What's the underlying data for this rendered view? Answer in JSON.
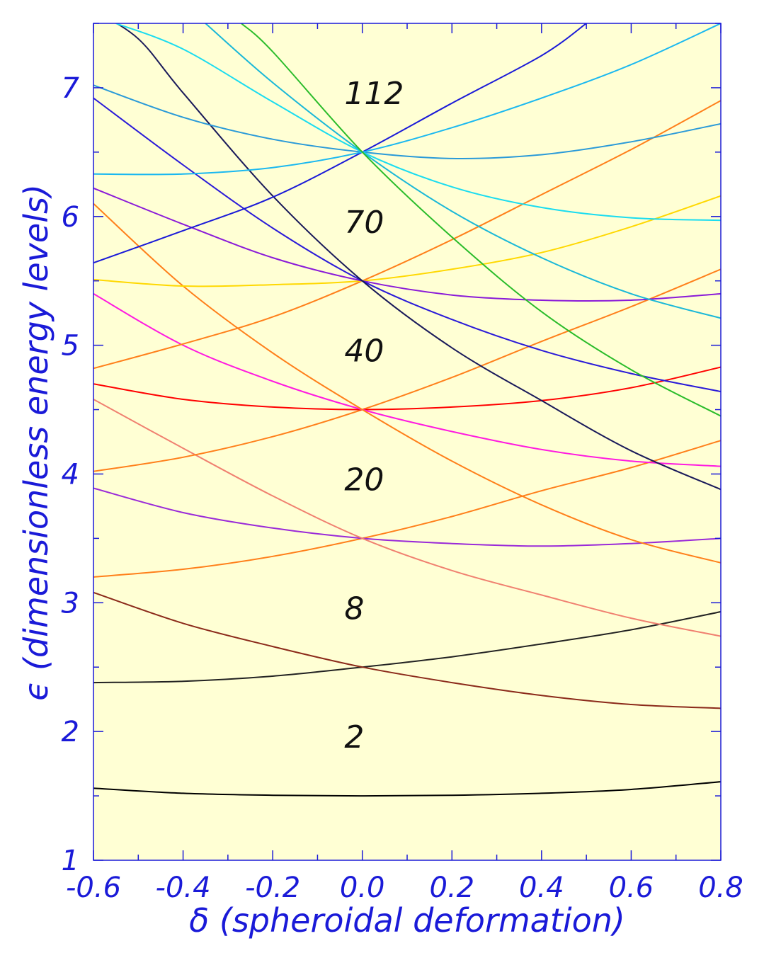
{
  "chart_data": {
    "type": "line",
    "xlabel": "δ (spheroidal deformation)",
    "ylabel": "ϵ (dimensionless energy levels)",
    "xlim": [
      -0.6,
      0.8
    ],
    "ylim": [
      1,
      7.5
    ],
    "x_ticks": [
      "-0.6",
      "-0.4",
      "-0.2",
      "0.0",
      "0.2",
      "0.4",
      "0.6",
      "0.8"
    ],
    "y_ticks": [
      "1",
      "2",
      "3",
      "4",
      "5",
      "6",
      "7"
    ],
    "grid": false,
    "background": "#ffffd4",
    "frame_color": "#1a1ad8",
    "shell_labels": [
      {
        "text": "2",
        "x": 0.0,
        "y": 1.95
      },
      {
        "text": "8",
        "x": 0.0,
        "y": 2.95
      },
      {
        "text": "20",
        "x": 0.0,
        "y": 3.95
      },
      {
        "text": "40",
        "x": 0.0,
        "y": 4.95
      },
      {
        "text": "70",
        "x": 0.0,
        "y": 5.95
      },
      {
        "text": "112",
        "x": 0.0,
        "y": 6.95
      }
    ],
    "series": [
      {
        "color": "#000000",
        "x": [
          -0.6,
          -0.4,
          -0.2,
          0.0,
          0.2,
          0.4,
          0.6,
          0.8
        ],
        "y": [
          1.56,
          1.52,
          1.505,
          1.5,
          1.505,
          1.52,
          1.55,
          1.61
        ]
      },
      {
        "color": "#222222",
        "x": [
          -0.6,
          -0.4,
          -0.2,
          0.0,
          0.2,
          0.4,
          0.6,
          0.8
        ],
        "y": [
          2.38,
          2.39,
          2.43,
          2.5,
          2.58,
          2.68,
          2.79,
          2.93
        ]
      },
      {
        "color": "#8b2a1a",
        "x": [
          -0.6,
          -0.4,
          -0.2,
          0.0,
          0.2,
          0.4,
          0.6,
          0.8
        ],
        "y": [
          3.08,
          2.84,
          2.66,
          2.5,
          2.38,
          2.28,
          2.21,
          2.18
        ]
      },
      {
        "color": "#ff7f1a",
        "x": [
          -0.6,
          -0.4,
          -0.2,
          0.0,
          0.2,
          0.4,
          0.6,
          0.8
        ],
        "y": [
          3.2,
          3.26,
          3.36,
          3.5,
          3.67,
          3.87,
          4.05,
          4.26
        ]
      },
      {
        "color": "#9a2ad8",
        "x": [
          -0.6,
          -0.4,
          -0.2,
          0.0,
          0.2,
          0.4,
          0.6,
          0.8
        ],
        "y": [
          3.89,
          3.7,
          3.58,
          3.5,
          3.46,
          3.44,
          3.46,
          3.5
        ]
      },
      {
        "color": "#f08070",
        "x": [
          -0.6,
          -0.4,
          -0.2,
          0.0,
          0.2,
          0.4,
          0.6,
          0.8
        ],
        "y": [
          4.58,
          4.2,
          3.83,
          3.5,
          3.25,
          3.06,
          2.88,
          2.74
        ]
      },
      {
        "color": "#ff7f1a",
        "x": [
          -0.6,
          -0.4,
          -0.2,
          0.0,
          0.2,
          0.4,
          0.6,
          0.8
        ],
        "y": [
          4.02,
          4.13,
          4.29,
          4.5,
          4.75,
          5.03,
          5.3,
          5.59
        ]
      },
      {
        "color": "#ff0000",
        "x": [
          -0.6,
          -0.4,
          -0.2,
          0.0,
          0.2,
          0.4,
          0.6,
          0.8
        ],
        "y": [
          4.7,
          4.58,
          4.52,
          4.5,
          4.52,
          4.57,
          4.67,
          4.83
        ]
      },
      {
        "color": "#ff1ae0",
        "x": [
          -0.6,
          -0.4,
          -0.2,
          0.0,
          0.2,
          0.4,
          0.6,
          0.8
        ],
        "y": [
          5.4,
          5.0,
          4.72,
          4.5,
          4.33,
          4.19,
          4.1,
          4.06
        ]
      },
      {
        "color": "#ff7f1a",
        "x": [
          -0.6,
          -0.4,
          -0.2,
          0.0,
          0.2,
          0.4,
          0.6,
          0.8
        ],
        "y": [
          6.1,
          5.46,
          4.94,
          4.5,
          4.1,
          3.76,
          3.49,
          3.31
        ]
      },
      {
        "color": "#ff7f1a",
        "x": [
          -0.6,
          -0.4,
          -0.2,
          0.0,
          0.2,
          0.4,
          0.6,
          0.8
        ],
        "y": [
          4.82,
          5.01,
          5.22,
          5.5,
          5.82,
          6.17,
          6.52,
          6.9
        ]
      },
      {
        "color": "#ffd800",
        "x": [
          -0.6,
          -0.4,
          -0.2,
          0.0,
          0.2,
          0.4,
          0.6,
          0.8
        ],
        "y": [
          5.51,
          5.46,
          5.47,
          5.5,
          5.59,
          5.72,
          5.92,
          6.16
        ]
      },
      {
        "color": "#8a1ad8",
        "x": [
          -0.6,
          -0.4,
          -0.2,
          0.0,
          0.2,
          0.4,
          0.6,
          0.8
        ],
        "y": [
          6.22,
          5.94,
          5.68,
          5.5,
          5.39,
          5.35,
          5.35,
          5.4
        ]
      },
      {
        "color": "#2a1ad8",
        "x": [
          -0.6,
          -0.4,
          -0.2,
          0.0,
          0.2,
          0.4,
          0.6,
          0.8
        ],
        "y": [
          6.92,
          6.4,
          5.91,
          5.5,
          5.2,
          4.96,
          4.78,
          4.64
        ]
      },
      {
        "color": "#1a1a5a",
        "x": [
          -0.6,
          -0.5,
          -0.4,
          -0.2,
          0.0,
          0.2,
          0.4,
          0.6,
          0.8
        ],
        "y": [
          7.6,
          7.38,
          6.96,
          6.16,
          5.5,
          4.98,
          4.57,
          4.18,
          3.88
        ]
      },
      {
        "color": "#1a1ad8",
        "x": [
          -0.6,
          -0.4,
          -0.2,
          0.0,
          0.2,
          0.4,
          0.5
        ],
        "y": [
          5.64,
          5.89,
          6.15,
          6.5,
          6.88,
          7.25,
          7.5
        ]
      },
      {
        "color": "#2a9ad8",
        "x": [
          -0.6,
          -0.4,
          -0.2,
          0.0,
          0.2,
          0.4,
          0.6,
          0.8
        ],
        "y": [
          7.02,
          6.77,
          6.6,
          6.5,
          6.45,
          6.48,
          6.58,
          6.72
        ]
      },
      {
        "color": "#1ab8f0",
        "x": [
          -0.6,
          -0.4,
          -0.2,
          0.0,
          0.2,
          0.4,
          0.6,
          0.8
        ],
        "y": [
          6.33,
          6.33,
          6.38,
          6.5,
          6.69,
          6.92,
          7.18,
          7.5
        ]
      },
      {
        "color": "#1adcf0",
        "x": [
          -0.55,
          -0.4,
          -0.2,
          0.0,
          0.2,
          0.4,
          0.6,
          0.8
        ],
        "y": [
          7.5,
          7.3,
          6.89,
          6.5,
          6.23,
          6.07,
          5.99,
          5.97
        ]
      },
      {
        "color": "#1ab8d8",
        "x": [
          -0.35,
          -0.2,
          0.0,
          0.2,
          0.4,
          0.6,
          0.8
        ],
        "y": [
          7.5,
          7.04,
          6.5,
          6.04,
          5.68,
          5.4,
          5.21
        ]
      },
      {
        "color": "#2abc2a",
        "x": [
          -0.27,
          -0.2,
          0.0,
          0.2,
          0.4,
          0.6,
          0.8
        ],
        "y": [
          7.5,
          7.28,
          6.5,
          5.84,
          5.26,
          4.81,
          4.45
        ]
      }
    ]
  }
}
